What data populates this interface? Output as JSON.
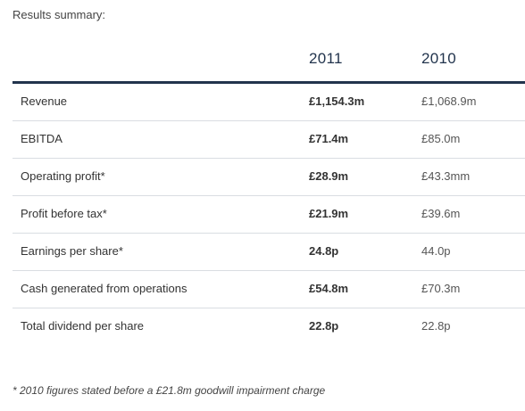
{
  "caption": "Results summary:",
  "columns": [
    "2011",
    "2010"
  ],
  "rows": [
    {
      "label": "Revenue",
      "v2011": "£1,154.3m",
      "v2010": "£1,068.9m"
    },
    {
      "label": "EBITDA",
      "v2011": "£71.4m",
      "v2010": "£85.0m"
    },
    {
      "label": "Operating profit*",
      "v2011": "£28.9m",
      "v2010": "£43.3mm"
    },
    {
      "label": "Profit before tax*",
      "v2011": "£21.9m",
      "v2010": "£39.6m"
    },
    {
      "label": "Earnings per share*",
      "v2011": "24.8p",
      "v2010": "44.0p"
    },
    {
      "label": "Cash generated from operations",
      "v2011": "£54.8m",
      "v2010": "£70.3m"
    },
    {
      "label": "Total dividend per share",
      "v2011": "22.8p",
      "v2010": "22.8p"
    }
  ],
  "footnote": "* 2010 figures stated before a £21.8m goodwill impairment charge",
  "colors": {
    "header_text": "#22344d",
    "header_rule": "#22344d",
    "row_divider": "#d9dde2"
  }
}
